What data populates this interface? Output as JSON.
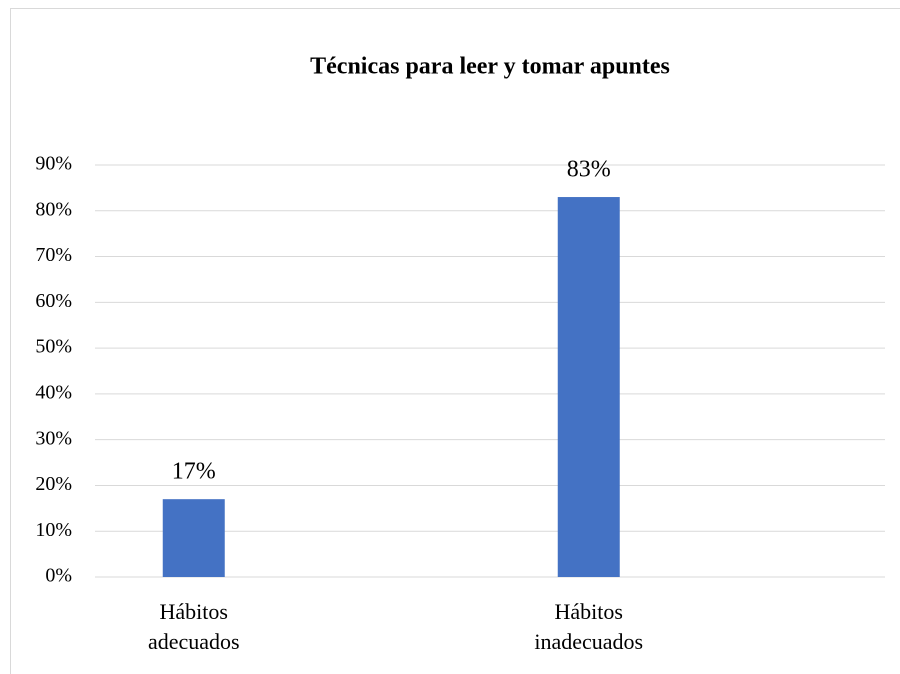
{
  "chart_data": {
    "type": "bar",
    "title": "Técnicas para leer y tomar apuntes",
    "categories": [
      "Hábitos adecuados",
      "Hábitos inadecuados"
    ],
    "values": [
      17,
      83
    ],
    "value_labels": [
      "17%",
      "83%"
    ],
    "color": "#4472c4",
    "ylim": [
      0,
      90
    ],
    "yticks": [
      {
        "value": 0,
        "label": "0%"
      },
      {
        "value": 10,
        "label": "10%"
      },
      {
        "value": 20,
        "label": "20%"
      },
      {
        "value": 30,
        "label": "30%"
      },
      {
        "value": 40,
        "label": "40%"
      },
      {
        "value": 50,
        "label": "50%"
      },
      {
        "value": 60,
        "label": "60%"
      },
      {
        "value": 70,
        "label": "70%"
      },
      {
        "value": 80,
        "label": "80%"
      },
      {
        "value": 90,
        "label": "90%"
      }
    ],
    "grid": true
  }
}
